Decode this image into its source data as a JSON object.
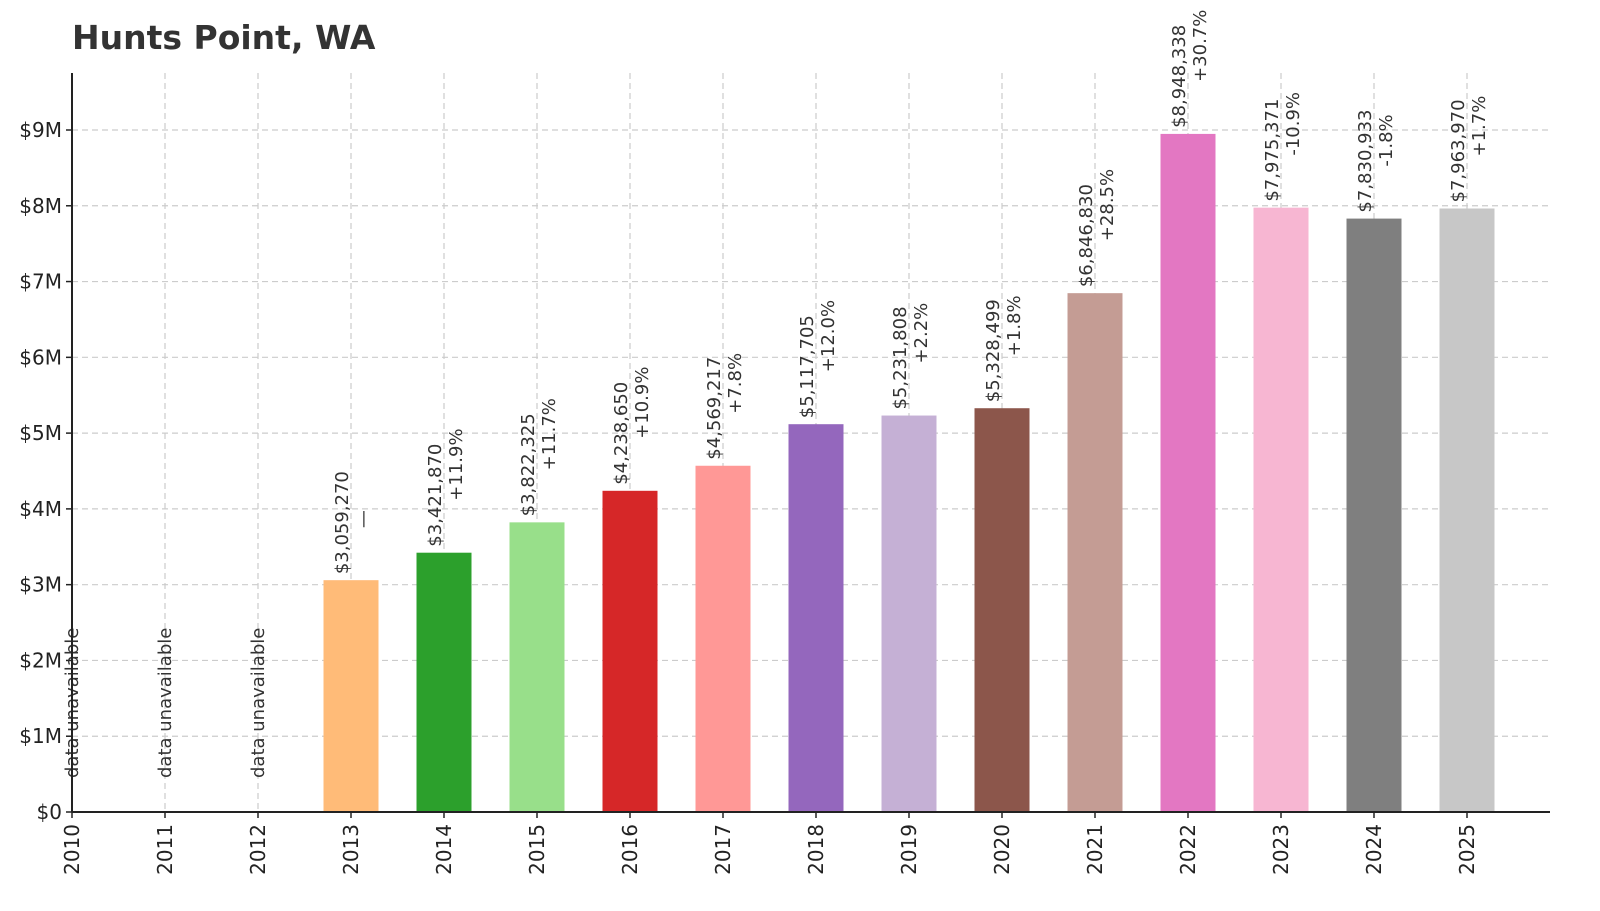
{
  "title": "Hunts Point, WA",
  "chart_data": {
    "type": "bar",
    "title": "Hunts Point, WA",
    "xlabel": "",
    "ylabel": "",
    "ylim": [
      0,
      9800000
    ],
    "grid": true,
    "yticks": [
      0,
      1000000,
      2000000,
      3000000,
      4000000,
      5000000,
      6000000,
      7000000,
      8000000,
      9000000
    ],
    "ytick_labels": [
      "$0",
      "$1M",
      "$2M",
      "$3M",
      "$4M",
      "$5M",
      "$6M",
      "$7M",
      "$8M",
      "$9M"
    ],
    "categories": [
      "2010",
      "2011",
      "2012",
      "2013",
      "2014",
      "2015",
      "2016",
      "2017",
      "2018",
      "2019",
      "2020",
      "2021",
      "2022",
      "2023",
      "2024",
      "2025"
    ],
    "values": [
      null,
      null,
      null,
      3059270,
      3421870,
      3822325,
      4238650,
      4569217,
      5117705,
      5231808,
      5328499,
      6846830,
      8948338,
      7975371,
      7830933,
      7963970
    ],
    "value_labels": [
      "data unavailable",
      "data unavailable",
      "data unavailable",
      "$3,059,270",
      "$3,421,870",
      "$3,822,325",
      "$4,238,650",
      "$4,569,217",
      "$5,117,705",
      "$5,231,808",
      "$5,328,499",
      "$6,846,830",
      "$8,948,338",
      "$7,975,371",
      "$7,830,933",
      "$7,963,970"
    ],
    "change_labels": [
      "",
      "",
      "",
      "—",
      "+11.9%",
      "+11.7%",
      "+10.9%",
      "+7.8%",
      "+12.0%",
      "+2.2%",
      "+1.8%",
      "+28.5%",
      "+30.7%",
      "-10.9%",
      "-1.8%",
      "+1.7%"
    ],
    "colors": [
      "#1f77b4",
      "#aec7e8",
      "#ff7f0e",
      "#ffbb78",
      "#2ca02c",
      "#98df8a",
      "#d62728",
      "#ff9896",
      "#9467bd",
      "#c5b0d5",
      "#8c564b",
      "#c49c94",
      "#e377c2",
      "#f7b6d2",
      "#7f7f7f",
      "#c7c7c7"
    ]
  }
}
